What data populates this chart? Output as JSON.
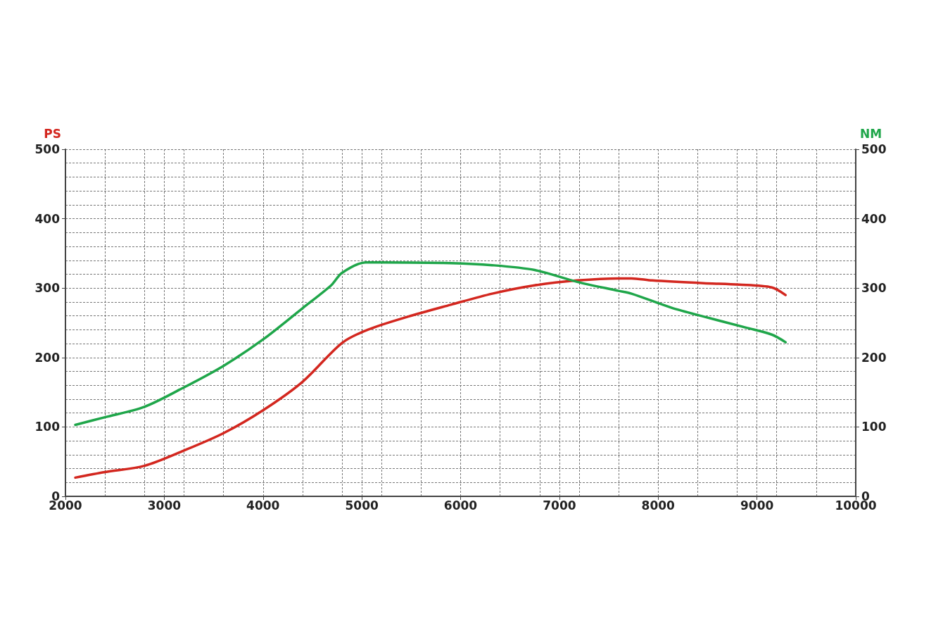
{
  "chart_data": {
    "type": "line",
    "ylabel": "PS",
    "y2label": "NM",
    "xlim": [
      2000,
      10000
    ],
    "xticks": [
      2000,
      3000,
      4000,
      5000,
      6000,
      7000,
      8000,
      9000,
      10000
    ],
    "ylim": [
      0,
      500
    ],
    "yticks": [
      0,
      100,
      200,
      300,
      400,
      500
    ],
    "y2lim": [
      0,
      500
    ],
    "y2ticks": [
      0,
      100,
      200,
      300,
      400,
      500
    ],
    "grid": true,
    "marker": "none",
    "line_style": "solid",
    "series": [
      {
        "color": "#d3271f",
        "axis": "y",
        "x": [
          2100,
          2400,
          2800,
          3200,
          3600,
          4000,
          4400,
          4800,
          5060,
          5470,
          5900,
          6320,
          6750,
          7180,
          7600,
          7730,
          7940,
          8460,
          8820,
          9150,
          9290
        ],
        "values": [
          27,
          35,
          44,
          66,
          91,
          124,
          165,
          221,
          240,
          259,
          276,
          292,
          304,
          311,
          314,
          314,
          311,
          307,
          305,
          301,
          290
        ]
      },
      {
        "color": "#1fa64a",
        "axis": "y2",
        "x": [
          2100,
          2400,
          2800,
          3200,
          3600,
          4000,
          4400,
          4690,
          4800,
          5040,
          5180,
          5900,
          6320,
          6750,
          7180,
          7600,
          7730,
          8130,
          8460,
          8890,
          9150,
          9290
        ],
        "values": [
          103,
          114,
          129,
          157,
          188,
          226,
          271,
          304,
          322,
          337,
          337,
          336,
          333,
          326,
          309,
          296,
          292,
          272,
          259,
          243,
          233,
          222
        ]
      }
    ]
  }
}
